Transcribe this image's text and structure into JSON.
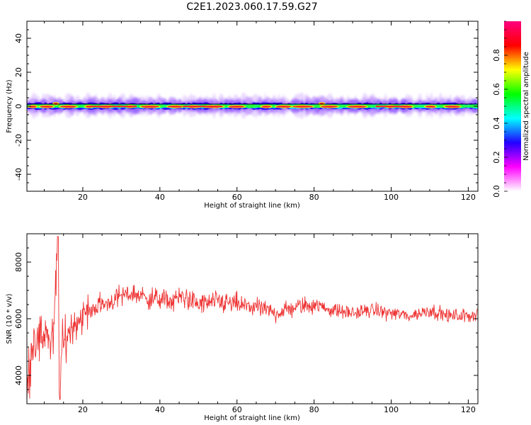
{
  "figure_title": "C2E1.2023.060.17.59.G27",
  "chart_data": [
    {
      "type": "heatmap",
      "title": "",
      "xlabel": "Height of straight line (km)",
      "ylabel": "Frequency (Hz)",
      "xlim": [
        5.5,
        122.5
      ],
      "ylim": [
        -50,
        50
      ],
      "x_ticks": [
        20,
        40,
        60,
        80,
        100,
        120
      ],
      "x_tick_labels": [
        "20",
        "40",
        "60",
        "80",
        "100",
        "120"
      ],
      "y_ticks": [
        40,
        20,
        0,
        -20,
        -40
      ],
      "y_tick_labels": [
        "40",
        "20",
        "0",
        "-20",
        "-40"
      ],
      "colorbar": {
        "label": "Normalized spectral amplitude",
        "range": [
          0,
          1
        ],
        "ticks": [
          0.0,
          0.2,
          0.4,
          0.6,
          0.8
        ],
        "tick_labels": [
          "0.0",
          "0.2",
          "0.4",
          "0.6",
          "0.8"
        ],
        "colormap": "gist_rainbow_r",
        "stops": [
          "#ffffff",
          "#ff00ff",
          "#2200ff",
          "#00ffff",
          "#00ff00",
          "#ffff00",
          "#ff0000",
          "#ff0080"
        ]
      },
      "peak_frequency_hz": 0,
      "band_halfwidth_hz": 5,
      "secondary_peaks": [
        {
          "x": 13,
          "y": 1.5
        },
        {
          "x": 82,
          "y": 1.5
        }
      ],
      "grid": false
    },
    {
      "type": "line",
      "title": "",
      "xlabel": "Height of straight line (km)",
      "ylabel": "SNR (10 * v/v)",
      "xlim": [
        5.5,
        122.5
      ],
      "ylim": [
        3000,
        9000
      ],
      "x_ticks": [
        20,
        40,
        60,
        80,
        100,
        120
      ],
      "x_tick_labels": [
        "20",
        "40",
        "60",
        "80",
        "100",
        "120"
      ],
      "y_ticks": [
        4000,
        6000,
        8000
      ],
      "y_tick_labels": [
        "4000",
        "6000",
        "8000"
      ],
      "color": "#ee3333",
      "grid": false,
      "series": [
        {
          "name": "",
          "x": [
            5.5,
            6.5,
            7.5,
            8.5,
            9.5,
            10.5,
            11.5,
            12.5,
            13.5,
            14.0,
            14.5,
            15.5,
            17,
            19,
            21,
            23,
            25,
            27,
            30,
            33,
            35,
            38,
            40,
            43,
            46,
            50,
            55,
            60,
            65,
            70,
            75,
            80,
            85,
            90,
            95,
            100,
            105,
            110,
            115,
            120,
            122.5
          ],
          "y": [
            3400,
            4800,
            5500,
            5100,
            5300,
            5800,
            5000,
            5400,
            8900,
            3200,
            4800,
            5300,
            5700,
            6000,
            6200,
            6400,
            6500,
            6600,
            6800,
            6900,
            6800,
            6700,
            6700,
            6600,
            6800,
            6500,
            6600,
            6500,
            6400,
            6200,
            6400,
            6500,
            6300,
            6200,
            6300,
            6200,
            6100,
            6300,
            6100,
            6100,
            6200
          ]
        }
      ]
    }
  ]
}
